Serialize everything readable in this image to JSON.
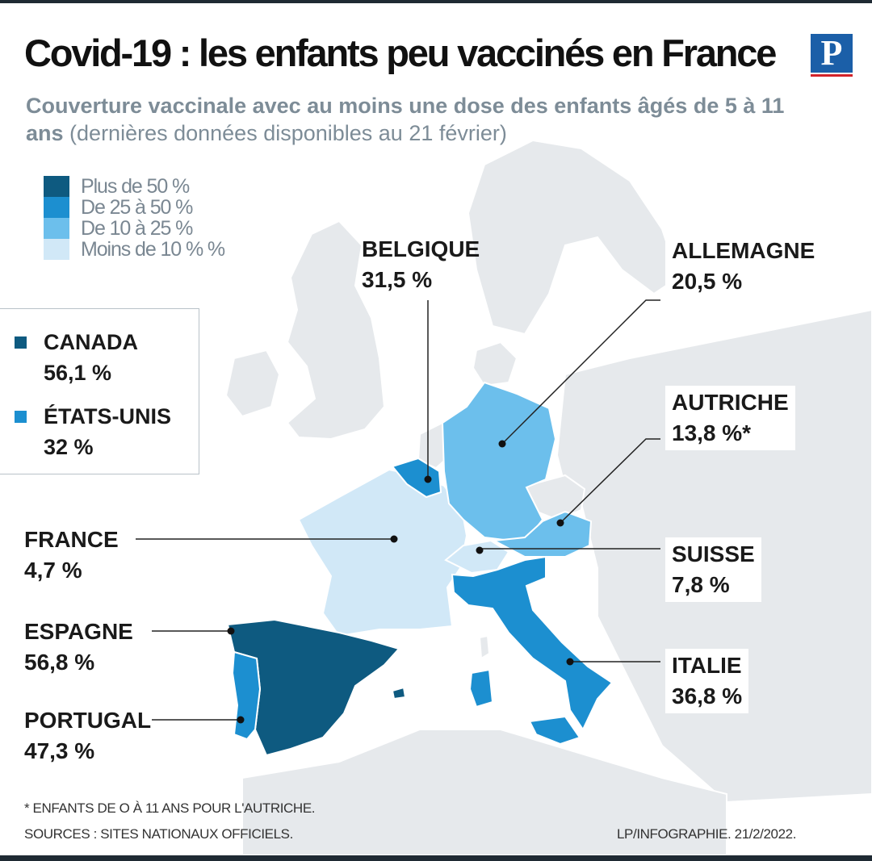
{
  "header": {
    "title": "Covid-19 : les enfants peu vaccinés en France",
    "subtitle_bold": "Couverture vaccinale avec au moins une dose des enfants âgés de 5 à 11 ans",
    "subtitle_light": "(dernières données disponibles au 21 février)",
    "logo_letter": "P"
  },
  "legend": [
    {
      "label": "Plus de 50 %",
      "color": "#0e5a80"
    },
    {
      "label": "De 25 à 50 %",
      "color": "#1c8fd0"
    },
    {
      "label": "De 10 à 25 %",
      "color": "#6cbfec"
    },
    {
      "label": "Moins de 10 % %",
      "color": "#d1e8f7"
    }
  ],
  "inset": [
    {
      "country": "CANADA",
      "value": "56,1 %",
      "color": "#0e5a80"
    },
    {
      "country": "ÉTATS-UNIS",
      "value": "32 %",
      "color": "#1c8fd0"
    }
  ],
  "countries": {
    "belgique": {
      "name": "BELGIQUE",
      "value": "31,5 %",
      "color": "#1c8fd0"
    },
    "allemagne": {
      "name": "ALLEMAGNE",
      "value": "20,5 %",
      "color": "#6cbfec"
    },
    "autriche": {
      "name": "AUTRICHE",
      "value": "13,8 %*",
      "color": "#6cbfec"
    },
    "suisse": {
      "name": "SUISSE",
      "value": "7,8 %",
      "color": "#d1e8f7"
    },
    "italie": {
      "name": "ITALIE",
      "value": "36,8 %",
      "color": "#1c8fd0"
    },
    "france": {
      "name": "FRANCE",
      "value": "4,7 %",
      "color": "#d1e8f7"
    },
    "espagne": {
      "name": "ESPAGNE",
      "value": "56,8 %",
      "color": "#0e5a80"
    },
    "portugal": {
      "name": "PORTUGAL",
      "value": "47,3 %",
      "color": "#1c8fd0"
    }
  },
  "footer": {
    "footnote": "* ENFANTS DE O À 11 ANS POUR L'AUTRICHE.",
    "sources": "SOURCES : SITES NATIONAUX OFFICIELS.",
    "credit": "LP/INFOGRAPHIE.  21/2/2022."
  }
}
